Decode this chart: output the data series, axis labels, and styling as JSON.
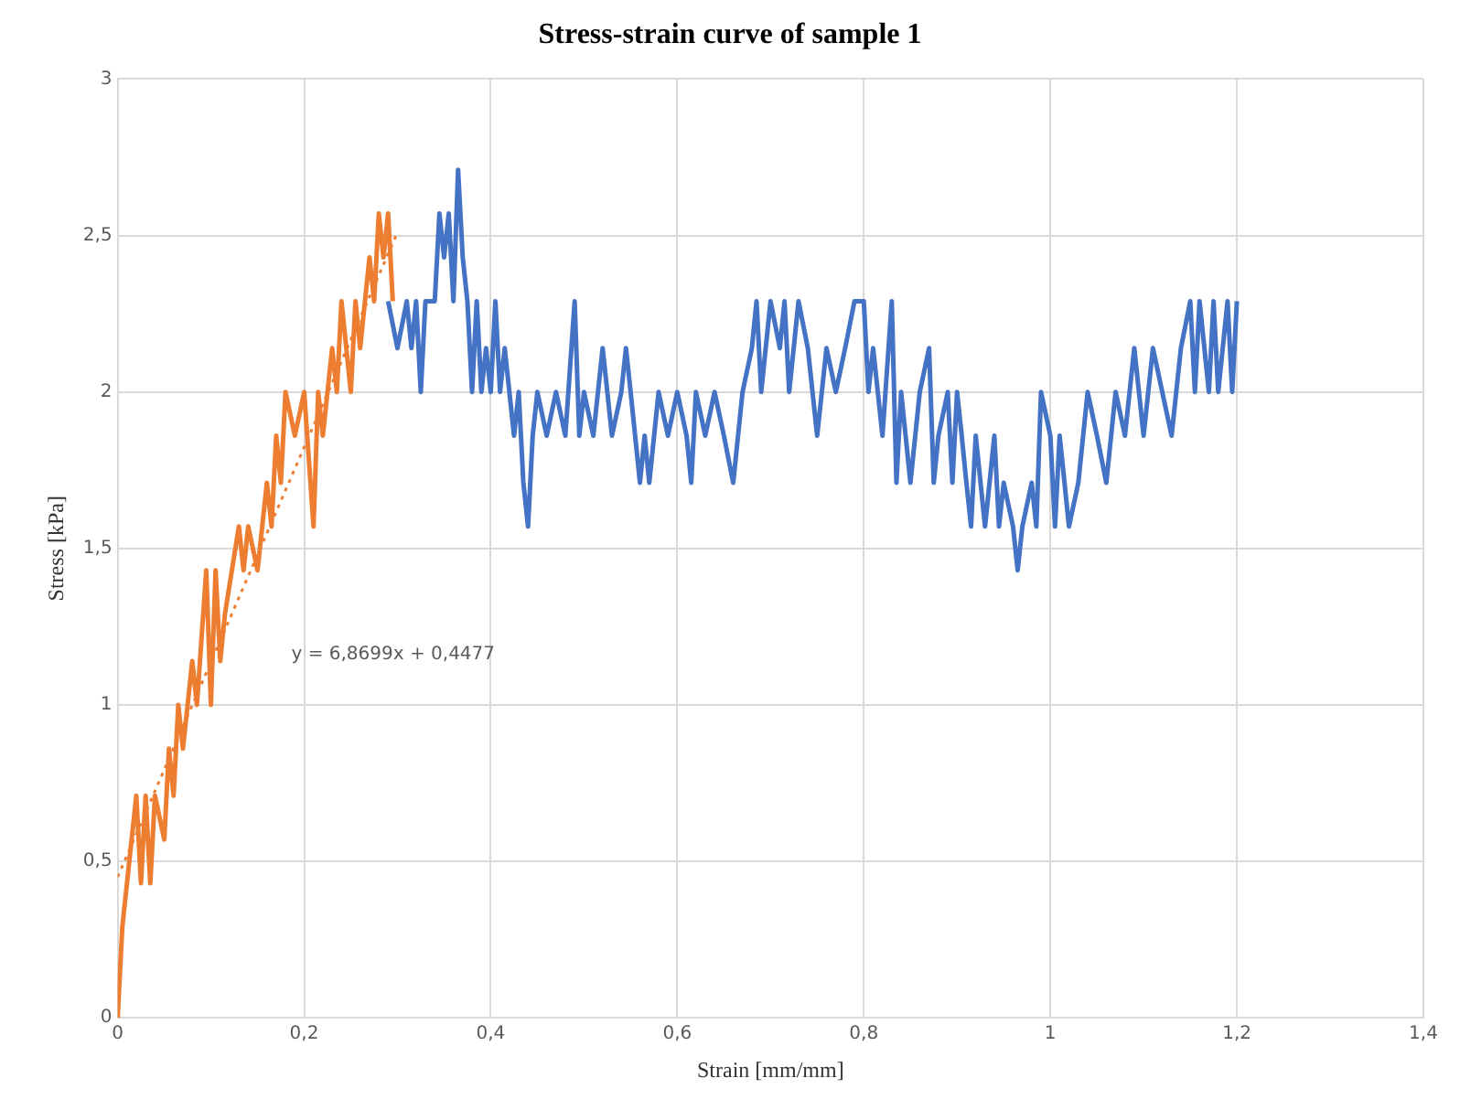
{
  "chart_data": {
    "type": "line",
    "title": "Stress-strain curve of sample 1",
    "xlabel": "Strain [mm/mm]",
    "ylabel": "Stress [kPa]",
    "xlim": [
      0,
      1.4
    ],
    "xticks": [
      0,
      {
        "value": 0.2,
        "label": "0,2"
      },
      {
        "value": 0.4,
        "label": "0,4"
      },
      {
        "value": 0.6,
        "label": "0,6"
      },
      {
        "value": 0.8,
        "label": "0,8"
      },
      1,
      {
        "value": 1.2,
        "label": "1,2"
      },
      {
        "value": 1.4,
        "label": "1,4"
      }
    ],
    "ylim": [
      0,
      3
    ],
    "yticks": [
      0,
      {
        "value": 0.5,
        "label": "0,5"
      },
      1,
      {
        "value": 1.5,
        "label": "1,5"
      },
      2,
      {
        "value": 2.5,
        "label": "2,5"
      },
      3
    ],
    "grid": true,
    "legend": false,
    "marker": "none",
    "line_style": "solid",
    "annotations": [
      "y = 6,8699x + 0,4477"
    ],
    "series": [
      {
        "color": "#4472c4",
        "x": [
          0.29,
          0.3,
          0.31,
          0.315,
          0.32,
          0.325,
          0.33,
          0.34,
          0.345,
          0.35,
          0.355,
          0.36,
          0.365,
          0.37,
          0.375,
          0.38,
          0.385,
          0.39,
          0.395,
          0.4,
          0.405,
          0.41,
          0.415,
          0.42,
          0.425,
          0.43,
          0.435,
          0.44,
          0.445,
          0.45,
          0.46,
          0.47,
          0.48,
          0.49,
          0.495,
          0.5,
          0.51,
          0.52,
          0.53,
          0.54,
          0.545,
          0.55,
          0.56,
          0.565,
          0.57,
          0.58,
          0.59,
          0.6,
          0.61,
          0.615,
          0.62,
          0.63,
          0.64,
          0.65,
          0.66,
          0.67,
          0.68,
          0.685,
          0.69,
          0.7,
          0.71,
          0.715,
          0.72,
          0.73,
          0.74,
          0.75,
          0.76,
          0.77,
          0.78,
          0.79,
          0.8,
          0.805,
          0.81,
          0.82,
          0.83,
          0.835,
          0.84,
          0.85,
          0.86,
          0.87,
          0.875,
          0.88,
          0.89,
          0.895,
          0.9,
          0.905,
          0.91,
          0.915,
          0.92,
          0.93,
          0.94,
          0.945,
          0.95,
          0.96,
          0.965,
          0.97,
          0.98,
          0.985,
          0.99,
          1.0,
          1.005,
          1.01,
          1.02,
          1.03,
          1.04,
          1.05,
          1.06,
          1.07,
          1.08,
          1.09,
          1.1,
          1.11,
          1.12,
          1.13,
          1.14,
          1.15,
          1.155,
          1.16,
          1.17,
          1.175,
          1.18,
          1.19,
          1.195,
          1.2
        ],
        "values": [
          2.29,
          2.14,
          2.29,
          2.14,
          2.29,
          2.0,
          2.29,
          2.29,
          2.57,
          2.43,
          2.57,
          2.29,
          2.71,
          2.43,
          2.29,
          2.0,
          2.29,
          2.0,
          2.14,
          2.0,
          2.29,
          2.0,
          2.14,
          2.0,
          1.86,
          2.0,
          1.71,
          1.57,
          1.86,
          2.0,
          1.86,
          2.0,
          1.86,
          2.29,
          1.86,
          2.0,
          1.86,
          2.14,
          1.86,
          2.0,
          2.14,
          2.0,
          1.71,
          1.86,
          1.71,
          2.0,
          1.86,
          2.0,
          1.86,
          1.71,
          2.0,
          1.86,
          2.0,
          1.86,
          1.71,
          2.0,
          2.14,
          2.29,
          2.0,
          2.29,
          2.14,
          2.29,
          2.0,
          2.29,
          2.14,
          1.86,
          2.14,
          2.0,
          2.14,
          2.29,
          2.29,
          2.0,
          2.14,
          1.86,
          2.29,
          1.71,
          2.0,
          1.71,
          2.0,
          2.14,
          1.71,
          1.86,
          2.0,
          1.71,
          2.0,
          1.86,
          1.71,
          1.57,
          1.86,
          1.57,
          1.86,
          1.57,
          1.71,
          1.57,
          1.43,
          1.57,
          1.71,
          1.57,
          2.0,
          1.86,
          1.57,
          1.86,
          1.57,
          1.71,
          2.0,
          1.86,
          1.71,
          2.0,
          1.86,
          2.14,
          1.86,
          2.14,
          2.0,
          1.86,
          2.14,
          2.29,
          2.0,
          2.29,
          2.0,
          2.29,
          2.0,
          2.29,
          2.0,
          2.29
        ]
      },
      {
        "color": "#ed7d31",
        "x": [
          0,
          0.005,
          0.01,
          0.02,
          0.025,
          0.03,
          0.035,
          0.04,
          0.05,
          0.055,
          0.06,
          0.065,
          0.07,
          0.08,
          0.085,
          0.095,
          0.1,
          0.105,
          0.11,
          0.115,
          0.13,
          0.135,
          0.14,
          0.15,
          0.16,
          0.165,
          0.17,
          0.175,
          0.18,
          0.19,
          0.2,
          0.21,
          0.215,
          0.22,
          0.23,
          0.235,
          0.24,
          0.25,
          0.255,
          0.26,
          0.27,
          0.275,
          0.28,
          0.285,
          0.29,
          0.295
        ],
        "values": [
          0,
          0.29,
          0.43,
          0.71,
          0.43,
          0.71,
          0.43,
          0.71,
          0.57,
          0.86,
          0.71,
          1.0,
          0.86,
          1.14,
          1.0,
          1.43,
          1.0,
          1.43,
          1.14,
          1.29,
          1.57,
          1.43,
          1.57,
          1.43,
          1.71,
          1.57,
          1.86,
          1.71,
          2.0,
          1.86,
          2.0,
          1.57,
          2.0,
          1.86,
          2.14,
          2.0,
          2.29,
          2.0,
          2.29,
          2.14,
          2.43,
          2.29,
          2.57,
          2.43,
          2.57,
          2.29
        ]
      },
      {
        "type": "line",
        "color": "#ed7d31",
        "line_style": "dotted",
        "x": [
          0,
          0.3
        ],
        "values": [
          0.45,
          2.51
        ]
      }
    ]
  }
}
